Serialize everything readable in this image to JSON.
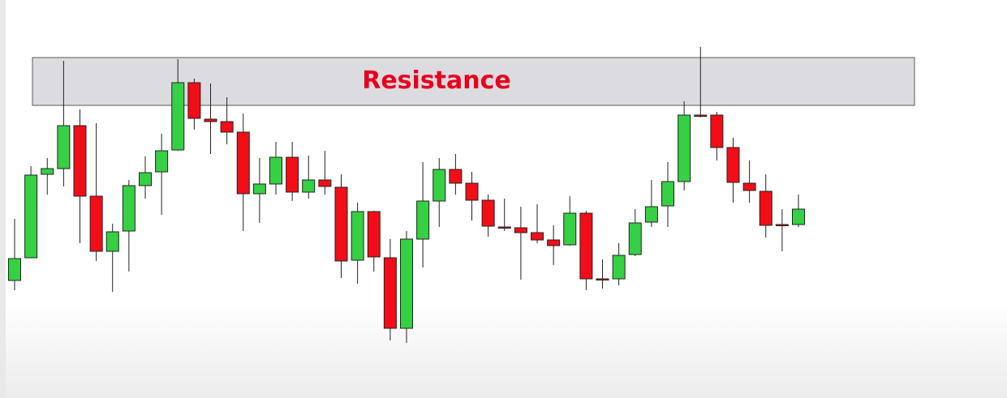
{
  "chart_data": {
    "type": "candlestick",
    "ylim": [
      0,
      491
    ],
    "up_color": "#35d043",
    "down_color": "#f20d17",
    "open": [
      145,
      173,
      276,
      283,
      336,
      249,
      181,
      206,
      262,
      279,
      306,
      389,
      344,
      341,
      328,
      252,
      264,
      297,
      254,
      269,
      260,
      170,
      230,
      173,
      86,
      196,
      243,
      282,
      265,
      244,
      211,
      210,
      204,
      195,
      189,
      228,
      147,
      147,
      177,
      217,
      237,
      267,
      349,
      349,
      309,
      265,
      255,
      214,
      214
    ],
    "high": [
      221,
      286,
      296,
      416,
      356,
      339,
      215,
      269,
      298,
      326,
      418,
      394,
      388,
      371,
      351,
      296,
      316,
      316,
      299,
      305,
      276,
      241,
      231,
      196,
      206,
      291,
      296,
      301,
      279,
      251,
      246,
      236,
      239,
      213,
      249,
      231,
      171,
      191,
      233,
      269,
      291,
      366,
      433,
      353,
      321,
      293,
      276,
      233,
      251
    ],
    "low": [
      133,
      173,
      251,
      261,
      191,
      169,
      131,
      156,
      246,
      226,
      305,
      331,
      301,
      313,
      206,
      216,
      251,
      243,
      246,
      251,
      148,
      141,
      156,
      71,
      68,
      161,
      211,
      251,
      219,
      199,
      206,
      146,
      191,
      164,
      188,
      133,
      135,
      139,
      175,
      211,
      211,
      256,
      346,
      293,
      241,
      241,
      198,
      181,
      211
    ],
    "close": [
      172,
      275,
      283,
      336,
      249,
      181,
      205,
      262,
      278,
      305,
      389,
      345,
      341,
      328,
      252,
      264,
      297,
      254,
      269,
      261,
      169,
      230,
      174,
      86,
      196,
      243,
      282,
      265,
      244,
      212,
      210,
      204,
      195,
      188,
      228,
      147,
      146,
      176,
      216,
      236,
      267,
      349,
      348,
      309,
      266,
      256,
      213,
      213,
      233
    ],
    "annotations": [
      {
        "text": "Resistance",
        "range": [
          361,
          420
        ]
      }
    ]
  }
}
